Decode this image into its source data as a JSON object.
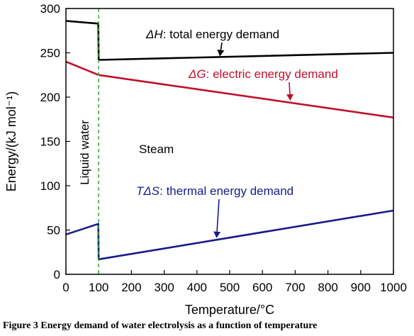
{
  "chart_data": {
    "type": "line",
    "title": "",
    "xlabel": "Temperature/°C",
    "ylabel": "Energy/(kJ mol⁻¹)",
    "xlim": [
      0,
      1000
    ],
    "ylim": [
      0,
      300
    ],
    "xticks": [
      0,
      100,
      200,
      300,
      400,
      500,
      600,
      700,
      800,
      900,
      1000
    ],
    "yticks": [
      0,
      50,
      100,
      150,
      200,
      250,
      300
    ],
    "grid": false,
    "phase_boundary": {
      "x": 100,
      "color": "#33aa33",
      "style": "dashed"
    },
    "series": [
      {
        "id": "dH",
        "color": "#000000",
        "x": [
          0,
          99,
          100,
          1000
        ],
        "y": [
          286,
          283,
          242,
          250
        ]
      },
      {
        "id": "dG",
        "color": "#c0102a",
        "x": [
          0,
          100,
          1000
        ],
        "y": [
          240,
          225,
          177
        ]
      },
      {
        "id": "TdS",
        "color": "#1a1a8c",
        "x": [
          0,
          99,
          100,
          1000
        ],
        "y": [
          45,
          57,
          17,
          72
        ]
      }
    ],
    "annotations": [
      {
        "id": "dH",
        "symbol": "ΔH",
        "text": ": total energy demand",
        "color": "#000000",
        "arrow_to": [
          470,
          246
        ]
      },
      {
        "id": "dG",
        "symbol": "ΔG",
        "text": ": electric energy demand",
        "color": "#c0102a",
        "arrow_to": [
          685,
          196
        ]
      },
      {
        "id": "TdS",
        "symbol": "TΔS",
        "text": ": thermal energy demand",
        "color": "#1a1a8c",
        "arrow_to": [
          460,
          41
        ]
      }
    ],
    "region_labels": {
      "liquid": "Liquid water",
      "steam": "Steam"
    }
  },
  "caption": "Figure 3 Energy demand of water electrolysis as a function of temperature"
}
